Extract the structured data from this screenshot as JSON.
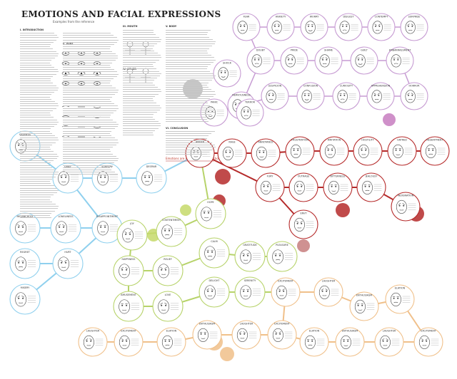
{
  "title": "EMOTIONS AND FACIAL EXPRESSIONS",
  "subtitle": "Examples from the reference",
  "sections": [
    {
      "label": "I. INTRODUCTION"
    },
    {
      "label": "II. EYES"
    },
    {
      "label": "III. MOUTH"
    },
    {
      "label": "IV. OTHER"
    },
    {
      "label": "V. BODY"
    },
    {
      "label": "VI. CONCLUSION"
    }
  ],
  "note": "Emotions are connected by lines showing relations",
  "colors": {
    "purple": "#c79cd3",
    "red": "#b52a2a",
    "blue": "#8fd0ee",
    "green": "#b7d36a",
    "orange": "#f0c08a",
    "circle_stroke": "#999999",
    "face": "#444444"
  },
  "families": {
    "purple": [
      "Fear",
      "Anxiety",
      "Worry",
      "Disgust",
      "Contempt",
      "Surprise",
      "Shock",
      "Doubt",
      "Pride",
      "Shame",
      "Guilt",
      "Embarrassment",
      "Nervousness",
      "Suspicion",
      "Confusion",
      "Curiosity",
      "Apprehension",
      "Horror",
      "Panic",
      "Terror"
    ],
    "red": [
      "Anger",
      "Rage",
      "Annoyance",
      "Frustration",
      "Irritation",
      "Hostility",
      "Hatred",
      "Resentment",
      "Fury",
      "Outrage",
      "Bitterness",
      "Jealousy",
      "Envy",
      "Indignation"
    ],
    "blue": [
      "Sadness",
      "Grief",
      "Sorrow",
      "Despair",
      "Melancholy",
      "Loneliness",
      "Disappointment",
      "Regret",
      "Hurt",
      "Misery"
    ],
    "green": [
      "Joy",
      "Happiness",
      "Amusement",
      "Contentment",
      "Relief",
      "Love",
      "Hope",
      "Calm",
      "Gratitude",
      "Delight",
      "Serenity",
      "Pleasure"
    ],
    "orange": [
      "Excitement",
      "Laughter",
      "Enthusiasm",
      "Elation"
    ]
  }
}
